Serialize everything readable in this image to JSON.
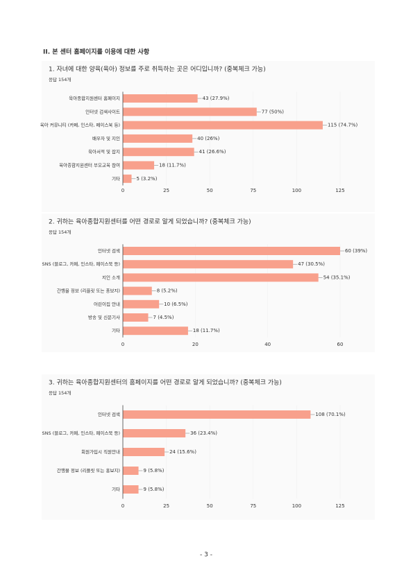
{
  "section_title": "II. 본 센터 홈페이지를 이용에 대한 사항",
  "page_number": "- 3 -",
  "chart_data": [
    {
      "type": "bar",
      "orientation": "horizontal",
      "title": "1. 자녀에 대한 양육(육아) 정보를 주로 취득하는 곳은 어디입니까? (중복체크 가능)",
      "subtitle": "응답 154개",
      "categories": [
        "육아종합지원센터 홈페이지",
        "인터넷 검색사이트",
        "육아 커뮤니티 (카페, 인스타, 페이스북 등)",
        "배우자 및 지인",
        "육아서적 및 잡지",
        "육아종합지원센터 부모교육 참여",
        "기타"
      ],
      "values": [
        43,
        77,
        115,
        40,
        41,
        18,
        5
      ],
      "value_labels": [
        "43 (27.9%)",
        "77 (50%)",
        "115 (74.7%)",
        "40 (26%)",
        "41 (26.6%)",
        "18 (11.7%)",
        "5 (3.2%)"
      ],
      "color": "#f8a08c",
      "xlim": [
        0,
        125
      ],
      "xticks": [
        0,
        25,
        50,
        75,
        100,
        125
      ]
    },
    {
      "type": "bar",
      "orientation": "horizontal",
      "title": "2. 귀하는 육아종합지원센터를 어떤 경로로 알게 되었습니까? (중복체크 가능)",
      "subtitle": "응답 154개",
      "categories": [
        "인터넷 검색",
        "SNS (블로그, 카페, 인스타, 페이스북 등)",
        "지인 소개",
        "간행물 정보 (리플릿 또는 홍보지)",
        "어린이집 안내",
        "방송 및 신문기사",
        "기타"
      ],
      "values": [
        60,
        47,
        54,
        8,
        10,
        7,
        18
      ],
      "value_labels": [
        "60 (39%)",
        "47 (30.5%)",
        "54 (35.1%)",
        "8 (5.2%)",
        "10 (6.5%)",
        "7 (4.5%)",
        "18 (11.7%)"
      ],
      "color": "#f8a08c",
      "xlim": [
        0,
        60
      ],
      "xticks": [
        0,
        20,
        40,
        60
      ]
    },
    {
      "type": "bar",
      "orientation": "horizontal",
      "title": "3. 귀하는 육아종합지원센터의 홈페이지를 어떤 경로로 알게 되었습니까? (중복체크 가능)",
      "subtitle": "응답 154개",
      "categories": [
        "인터넷 검색",
        "SNS (블로그, 카페, 인스타, 페이스북 등)",
        "회원가입시 직원안내",
        "간행물 정보 (리플릿 또는 홍보지)",
        "기타"
      ],
      "values": [
        108,
        36,
        24,
        9,
        9
      ],
      "value_labels": [
        "108 (70.1%)",
        "36 (23.4%)",
        "24 (15.6%)",
        "9 (5.8%)",
        "9 (5.8%)"
      ],
      "color": "#f8a08c",
      "xlim": [
        0,
        125
      ],
      "xticks": [
        0,
        25,
        50,
        75,
        100,
        125
      ]
    }
  ]
}
